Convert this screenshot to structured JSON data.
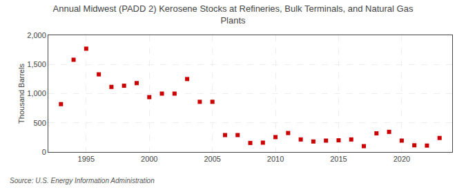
{
  "chart_data": {
    "type": "scatter",
    "title": "Annual Midwest (PADD 2) Kerosene Stocks at Refineries, Bulk Terminals, and Natural Gas\nPlants",
    "ylabel": "Thousand Barrels",
    "annotations": [
      "Source: U.S. Energy Information Administration"
    ],
    "x": [
      1993,
      1994,
      1995,
      1996,
      1997,
      1998,
      1999,
      2000,
      2001,
      2002,
      2003,
      2004,
      2005,
      2006,
      2007,
      2008,
      2009,
      2010,
      2011,
      2012,
      2013,
      2014,
      2015,
      2016,
      2017,
      2018,
      2019,
      2020,
      2021,
      2022,
      2023
    ],
    "values": [
      820,
      1580,
      1770,
      1330,
      1115,
      1135,
      1180,
      940,
      1000,
      1000,
      1250,
      860,
      860,
      290,
      290,
      155,
      160,
      255,
      325,
      215,
      180,
      195,
      200,
      215,
      100,
      320,
      345,
      195,
      115,
      110,
      240
    ],
    "color": "#cc0000",
    "marker": "square",
    "xlim": [
      1992,
      2024
    ],
    "xticks": [
      1995,
      2000,
      2005,
      2010,
      2015,
      2020
    ],
    "ylim": [
      0,
      2000
    ],
    "yticks": [
      0,
      500,
      {
        "value": 1000,
        "label": "1,000"
      },
      {
        "value": 1500,
        "label": "1,500"
      },
      {
        "value": 2000,
        "label": "2,000"
      }
    ],
    "grid": true
  }
}
